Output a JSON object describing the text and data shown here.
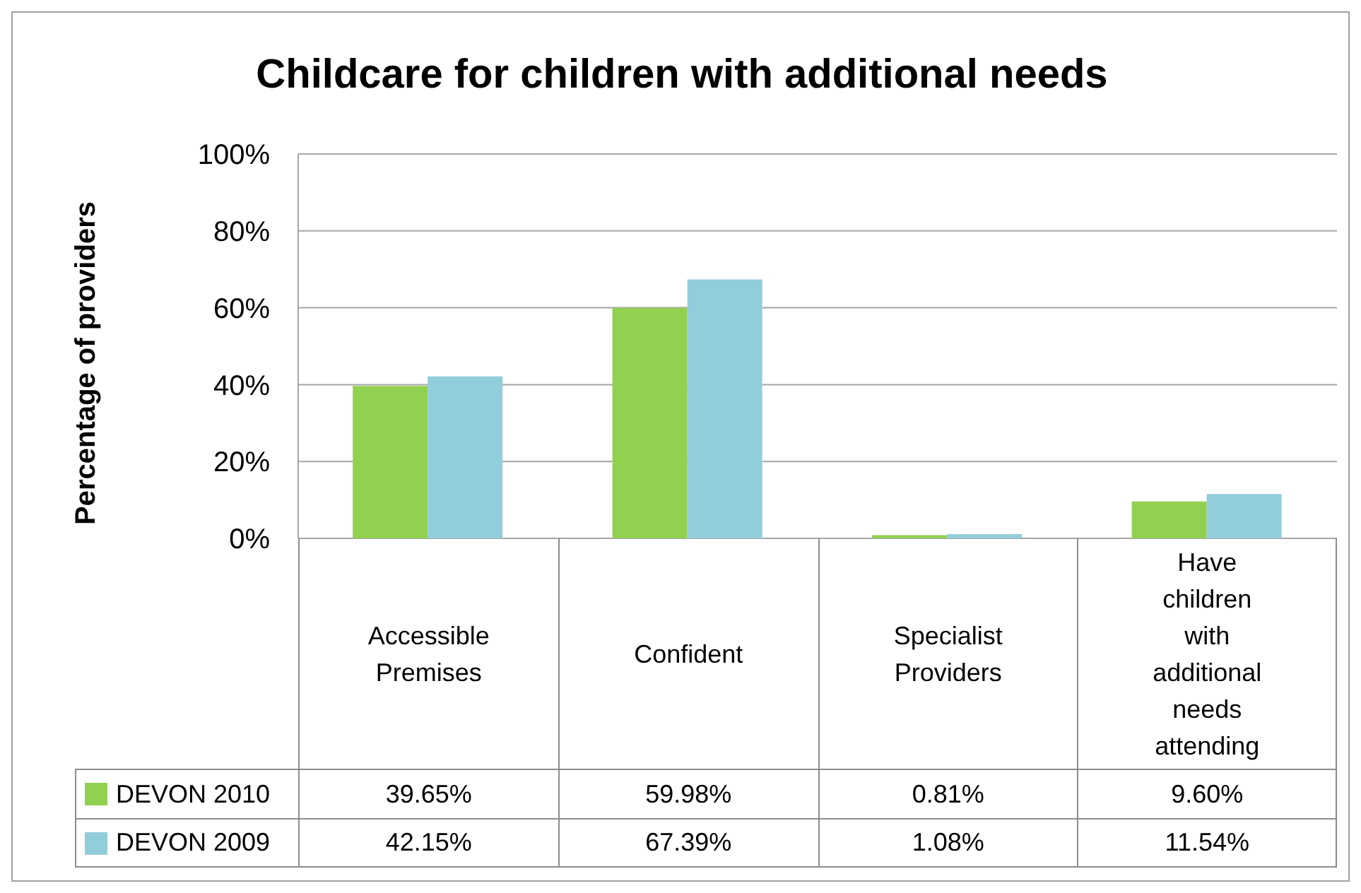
{
  "chart_data": {
    "type": "bar",
    "title": "Childcare for children with additional needs",
    "ylabel": "Percentage of providers",
    "categories": [
      "Accessible Premises",
      "Confident",
      "Specialist Providers",
      "Have children with additional needs attending"
    ],
    "series": [
      {
        "name": "DEVON 2010",
        "color": "#92d050",
        "values": [
          39.65,
          59.98,
          0.81,
          9.6
        ],
        "value_labels": [
          "39.65%",
          "59.98%",
          "0.81%",
          "9.60%"
        ]
      },
      {
        "name": "DEVON 2009",
        "color": "#92cddc",
        "values": [
          42.15,
          67.39,
          1.08,
          11.54
        ],
        "value_labels": [
          "42.15%",
          "67.39%",
          "1.08%",
          "11.54%"
        ]
      }
    ],
    "ylim": [
      0,
      100
    ],
    "yticks": [
      {
        "value": 0,
        "label": "0%"
      },
      {
        "value": 20,
        "label": "20%"
      },
      {
        "value": 40,
        "label": "40%"
      },
      {
        "value": 60,
        "label": "60%"
      },
      {
        "value": 80,
        "label": "80%"
      },
      {
        "value": 100,
        "label": "100%"
      }
    ],
    "grid": "y",
    "legend": "bottom"
  }
}
